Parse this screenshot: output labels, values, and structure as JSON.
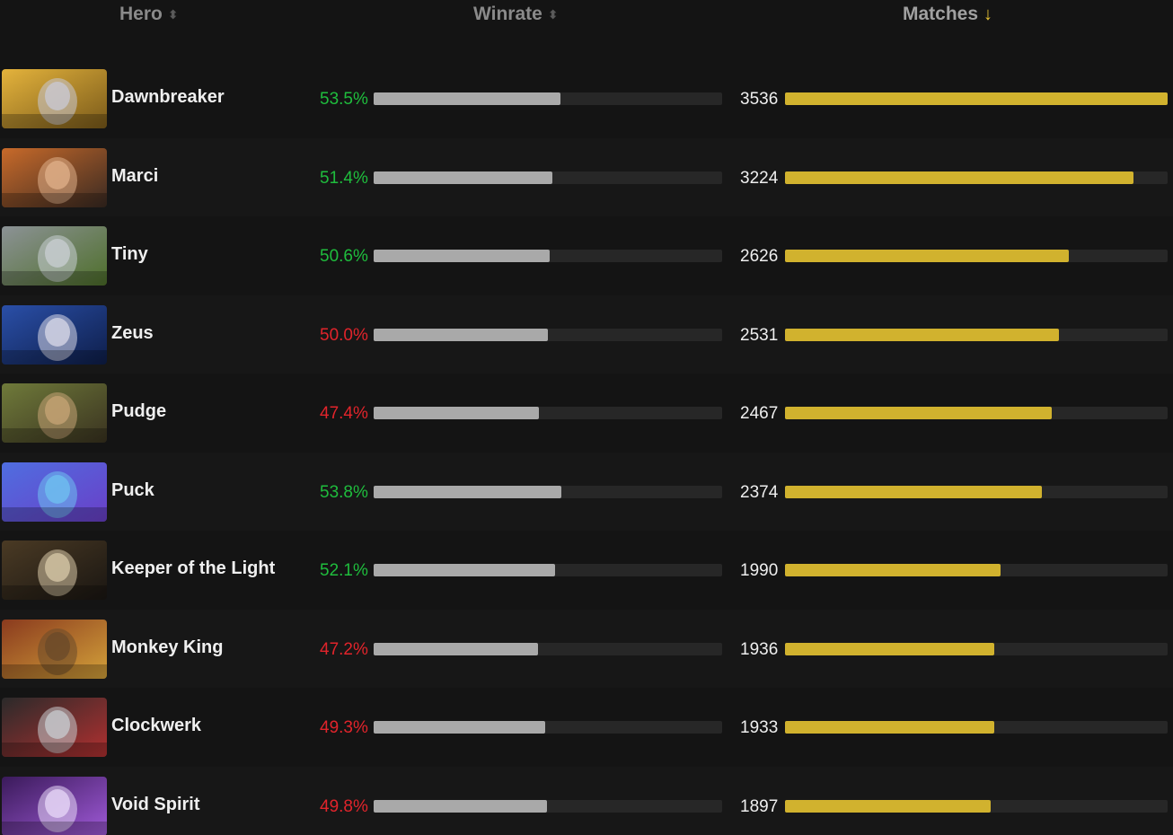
{
  "header": {
    "hero_label": "Hero",
    "winrate_label": "Winrate",
    "matches_label": "Matches",
    "sort_icon": "sort-updown-icon",
    "sort_active_icon": "arrow-down-icon",
    "accent_color": "#e8c233"
  },
  "max_matches": 3536,
  "rows": [
    {
      "hero": "Dawnbreaker",
      "winrate": "53.5%",
      "winrate_value": 53.5,
      "trend": "up",
      "matches": "3536",
      "matches_value": 3536,
      "colors": [
        "#e4b33c",
        "#7a5a1a",
        "#c9c9d6"
      ]
    },
    {
      "hero": "Marci",
      "winrate": "51.4%",
      "winrate_value": 51.4,
      "trend": "up",
      "matches": "3224",
      "matches_value": 3224,
      "colors": [
        "#c86a2a",
        "#3a2a22",
        "#e0b08a"
      ]
    },
    {
      "hero": "Tiny",
      "winrate": "50.6%",
      "winrate_value": 50.6,
      "trend": "up",
      "matches": "2626",
      "matches_value": 2626,
      "colors": [
        "#8c9296",
        "#4e6f2a",
        "#c9cfd3"
      ]
    },
    {
      "hero": "Zeus",
      "winrate": "50.0%",
      "winrate_value": 50.0,
      "trend": "down",
      "matches": "2531",
      "matches_value": 2531,
      "colors": [
        "#2a4fa8",
        "#0e1e4a",
        "#d9d9e8"
      ]
    },
    {
      "hero": "Pudge",
      "winrate": "47.4%",
      "winrate_value": 47.4,
      "trend": "down",
      "matches": "2467",
      "matches_value": 2467,
      "colors": [
        "#6f7a3a",
        "#3a3320",
        "#c7a476"
      ]
    },
    {
      "hero": "Puck",
      "winrate": "53.8%",
      "winrate_value": 53.8,
      "trend": "up",
      "matches": "2374",
      "matches_value": 2374,
      "colors": [
        "#4f6ee0",
        "#6a3fc8",
        "#6fc1f0"
      ]
    },
    {
      "hero": "Keeper of the Light",
      "winrate": "52.1%",
      "winrate_value": 52.1,
      "trend": "up",
      "matches": "1990",
      "matches_value": 1990,
      "colors": [
        "#4a3a24",
        "#1a1612",
        "#d8c9a8"
      ]
    },
    {
      "hero": "Monkey King",
      "winrate": "47.2%",
      "winrate_value": 47.2,
      "trend": "down",
      "matches": "1936",
      "matches_value": 1936,
      "colors": [
        "#8a3a1e",
        "#d4a23a",
        "#6a4a2a"
      ]
    },
    {
      "hero": "Clockwerk",
      "winrate": "49.3%",
      "winrate_value": 49.3,
      "trend": "down",
      "matches": "1933",
      "matches_value": 1933,
      "colors": [
        "#2a2a2a",
        "#b23030",
        "#c8ccd0"
      ]
    },
    {
      "hero": "Void Spirit",
      "winrate": "49.8%",
      "winrate_value": 49.8,
      "trend": "down",
      "matches": "1897",
      "matches_value": 1897,
      "colors": [
        "#3a1a5a",
        "#a05ad8",
        "#e8d8f8"
      ]
    }
  ]
}
